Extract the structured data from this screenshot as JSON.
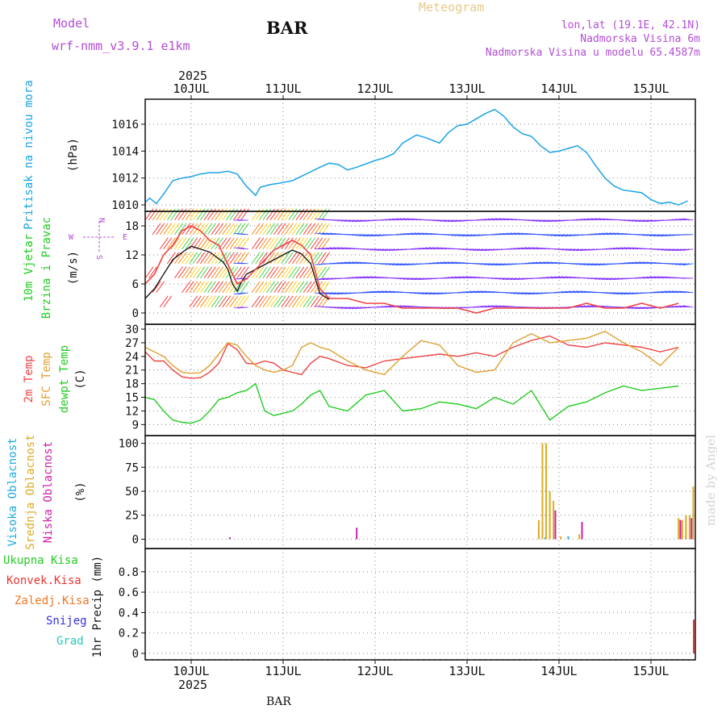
{
  "header": {
    "model_label": "Model",
    "model_name": "wrf-nmm_v3.9.1  e1km",
    "title": "BAR",
    "meteogram_label": "Meteogram",
    "coords": "lon,lat (19.1E, 42.1N)",
    "elevation": "Nadmorska Visina 6m",
    "model_elevation": "Nadmorska Visina u modelu 65.4587m",
    "footer_station": "BAR",
    "watermark": "made by Angel"
  },
  "colors": {
    "header_purple": "#b34dd6",
    "meteogram_gold": "#e8c98a",
    "pressure": "#1aa3e6",
    "wind_green": "#22cc22",
    "temp_red": "#ee4444",
    "sfc_temp": "#e0a030",
    "dewpt": "#22cc22",
    "cloud_high": "#22aadd",
    "cloud_mid": "#ddaa22",
    "cloud_low": "#cc22aa",
    "precip_total": "#22cc22",
    "precip_conv": "#ee3333",
    "precip_frozen": "#ee7722",
    "snow": "#3333dd",
    "hail": "#22ccbb",
    "wind_speed_line": "#111111"
  },
  "chart_data": {
    "type": "line",
    "x_axis": {
      "year": "2025",
      "day_labels": [
        "10JUL",
        "11JUL",
        "12JUL",
        "13JUL",
        "14JUL",
        "15JUL"
      ],
      "range_days": [
        -0.5,
        5.5
      ]
    },
    "panels": [
      {
        "name": "pressure",
        "ylabel_main": "Pritisak na nivou mora",
        "unit": "(hPa)",
        "yticks": [
          "1010",
          "1012",
          "1014",
          "1016"
        ],
        "ylim": [
          1010,
          1017.5
        ],
        "series": [
          {
            "name": "Pritisak na nivou mora",
            "x": [
              -0.5,
              -0.45,
              -0.38,
              -0.3,
              -0.2,
              -0.1,
              0.0,
              0.1,
              0.2,
              0.3,
              0.4,
              0.5,
              0.6,
              0.7,
              0.75,
              0.85,
              0.95,
              1.1,
              1.25,
              1.4,
              1.5,
              1.6,
              1.7,
              1.8,
              2.0,
              2.1,
              2.2,
              2.3,
              2.45,
              2.55,
              2.7,
              2.8,
              2.9,
              3.0,
              3.1,
              3.2,
              3.3,
              3.4,
              3.5,
              3.6,
              3.7,
              3.8,
              3.9,
              4.0,
              4.1,
              4.2,
              4.3,
              4.4,
              4.5,
              4.6,
              4.7,
              4.8,
              4.9,
              5.0,
              5.1,
              5.2,
              5.3,
              5.4,
              5.5
            ],
            "y": [
              1010.2,
              1010.5,
              1010.1,
              1010.8,
              1011.8,
              1012.0,
              1012.1,
              1012.3,
              1012.4,
              1012.4,
              1012.5,
              1012.3,
              1011.4,
              1010.7,
              1011.3,
              1011.5,
              1011.6,
              1011.8,
              1012.3,
              1012.8,
              1013.1,
              1013.0,
              1012.6,
              1012.8,
              1013.3,
              1013.5,
              1013.8,
              1014.6,
              1015.2,
              1015.0,
              1014.6,
              1015.4,
              1015.9,
              1016.0,
              1016.4,
              1016.8,
              1017.1,
              1016.6,
              1015.8,
              1015.3,
              1015.1,
              1014.4,
              1013.9,
              1014.0,
              1014.2,
              1014.4,
              1013.9,
              1012.9,
              1012.0,
              1011.4,
              1011.1,
              1011.0,
              1010.9,
              1010.4,
              1010.1,
              1010.2,
              1010.0,
              1010.3,
              1010.5
            ],
            "color": "#1aa3e6"
          }
        ]
      },
      {
        "name": "wind",
        "ylabel_main": "10m Vjetar",
        "ylabel_sub": "Brzina i Pravac",
        "unit": "(m/s)",
        "direction_key": [
          "N",
          "W",
          "E",
          "S"
        ],
        "yticks": [
          "0",
          "6",
          "12",
          "18"
        ],
        "ylim": [
          -1,
          20
        ],
        "series": [
          {
            "name": "wind speed",
            "x": [
              -0.5,
              -0.4,
              -0.3,
              -0.2,
              -0.1,
              0.0,
              0.1,
              0.2,
              0.3,
              0.35,
              0.4,
              0.45,
              0.5,
              0.55,
              0.6,
              0.7,
              0.8,
              0.9,
              1.0,
              1.1,
              1.2,
              1.3,
              1.4,
              1.5
            ],
            "y": [
              3,
              5,
              8,
              11,
              12.5,
              13.8,
              13.2,
              12.6,
              11.2,
              10.5,
              9.0,
              6.0,
              4.5,
              6.5,
              8.0,
              9.0,
              10.0,
              11.0,
              12.0,
              13.0,
              12.2,
              10.2,
              4.0,
              2.8
            ],
            "color": "#111111"
          },
          {
            "name": "gusts",
            "x": [
              -0.5,
              -0.4,
              -0.3,
              -0.2,
              -0.1,
              0.0,
              0.1,
              0.2,
              0.3,
              0.4,
              0.5,
              0.6,
              0.7,
              0.8,
              0.9,
              1.0,
              1.1,
              1.2,
              1.3,
              1.4,
              1.5,
              1.7,
              1.9,
              2.1,
              2.3,
              2.5,
              2.7,
              2.9,
              3.1,
              3.3,
              3.5,
              3.7,
              3.9,
              4.1,
              4.3,
              4.5,
              4.7,
              4.9,
              5.1,
              5.3,
              5.5
            ],
            "y": [
              6,
              8,
              12,
              14,
              17,
              18,
              17,
              15,
              14,
              10,
              6,
              7,
              9,
              11,
              13,
              14,
              15,
              14,
              12,
              5,
              3,
              3,
              2,
              2,
              1,
              1,
              1,
              1,
              0,
              1,
              1,
              1,
              1,
              1,
              2,
              1,
              1,
              2,
              1,
              2,
              2
            ],
            "color": "#ee4444"
          }
        ]
      },
      {
        "name": "temperature",
        "ylabel_lines": [
          "2m Temp",
          "SFC Temp",
          "dewpt Temp"
        ],
        "unit": "(C)",
        "yticks": [
          "9",
          "12",
          "15",
          "18",
          "21",
          "24",
          "27",
          "30"
        ],
        "ylim": [
          8,
          30
        ],
        "series": [
          {
            "name": "2m Temp",
            "x": [
              -0.5,
              -0.4,
              -0.3,
              -0.2,
              -0.1,
              0.0,
              0.1,
              0.2,
              0.3,
              0.4,
              0.5,
              0.6,
              0.7,
              0.8,
              0.9,
              1.0,
              1.1,
              1.2,
              1.3,
              1.4,
              1.5,
              1.7,
              1.9,
              2.1,
              2.3,
              2.5,
              2.7,
              2.9,
              3.1,
              3.3,
              3.5,
              3.7,
              3.9,
              4.1,
              4.3,
              4.5,
              4.7,
              4.9,
              5.1,
              5.3,
              5.5
            ],
            "y": [
              25,
              23,
              23,
              21,
              19.5,
              19.2,
              19.3,
              20.5,
              22.5,
              26.8,
              25.5,
              22.5,
              22.3,
              23.0,
              22.5,
              21.0,
              20.5,
              20.0,
              22.5,
              24.0,
              23.5,
              22.0,
              21.5,
              23.0,
              23.5,
              24.0,
              24.5,
              24.0,
              24.8,
              24.0,
              26.0,
              27.5,
              28.5,
              26.5,
              26.0,
              27.0,
              26.5,
              26.0,
              25.0,
              26.0,
              26.5
            ],
            "color": "#ee4444"
          },
          {
            "name": "SFC Temp",
            "x": [
              -0.5,
              -0.4,
              -0.3,
              -0.2,
              -0.1,
              0.0,
              0.1,
              0.2,
              0.3,
              0.4,
              0.5,
              0.6,
              0.7,
              0.8,
              0.9,
              1.0,
              1.1,
              1.2,
              1.3,
              1.4,
              1.5,
              1.7,
              1.9,
              2.1,
              2.3,
              2.5,
              2.7,
              2.9,
              3.1,
              3.3,
              3.5,
              3.7,
              3.9,
              4.1,
              4.3,
              4.5,
              4.7,
              4.9,
              5.1,
              5.3,
              5.5
            ],
            "y": [
              26,
              25,
              24,
              22,
              20.5,
              20.3,
              20.4,
              22,
              24.5,
              27.0,
              26.5,
              24.0,
              22.0,
              21.0,
              20.5,
              21.0,
              22.0,
              26.0,
              27.0,
              26.0,
              25.5,
              23.0,
              21.0,
              20.0,
              24.0,
              27.5,
              26.5,
              22.0,
              20.5,
              21.0,
              27.0,
              29.0,
              27.0,
              27.5,
              28.0,
              29.5,
              27.0,
              25.0,
              22.0,
              26.0,
              28.5
            ],
            "color": "#e0a030"
          },
          {
            "name": "dewpt Temp",
            "x": [
              -0.5,
              -0.4,
              -0.3,
              -0.2,
              -0.1,
              0.0,
              0.1,
              0.2,
              0.3,
              0.4,
              0.5,
              0.6,
              0.7,
              0.8,
              0.9,
              1.0,
              1.1,
              1.2,
              1.3,
              1.4,
              1.5,
              1.7,
              1.9,
              2.1,
              2.3,
              2.5,
              2.7,
              2.9,
              3.1,
              3.3,
              3.5,
              3.7,
              3.9,
              4.1,
              4.3,
              4.5,
              4.7,
              4.9,
              5.1,
              5.3,
              5.5
            ],
            "y": [
              15,
              14.5,
              12,
              10,
              9.5,
              9.3,
              10,
              12,
              14.5,
              15,
              16,
              16.5,
              18,
              12,
              11,
              11.5,
              12,
              13.5,
              15.5,
              16.5,
              13,
              12,
              15.5,
              16.5,
              12,
              12.5,
              14,
              13.5,
              12.5,
              15,
              13.5,
              16.5,
              10,
              13,
              14,
              16,
              17.5,
              16.5,
              17,
              17.5,
              18
            ],
            "color": "#22cc22"
          }
        ]
      },
      {
        "name": "cloud",
        "ylabel_lines": [
          "Visoka Oblacnost",
          "Srednja Oblacnost",
          "Niska Oblacnost"
        ],
        "unit": "(%)",
        "yticks": [
          "0",
          "25",
          "50",
          "75",
          "100"
        ],
        "ylim": [
          -3,
          103
        ],
        "bars": [
          {
            "name": "Visoka Oblacnost",
            "color": "#22aadd",
            "x": [
              3.85,
              4.1,
              5.38
            ],
            "values": [
              2,
              3,
              3
            ]
          },
          {
            "name": "Srednja Oblacnost",
            "color": "#ddaa22",
            "x": [
              3.78,
              3.82,
              3.86,
              3.9,
              3.94,
              4.02,
              4.22,
              5.3,
              5.34,
              5.38,
              5.42,
              5.46,
              5.5
            ],
            "values": [
              20,
              100,
              100,
              50,
              40,
              3,
              5,
              22,
              20,
              25,
              25,
              55,
              58
            ]
          },
          {
            "name": "Niska Oblacnost",
            "color": "#cc22aa",
            "x": [
              0.42,
              1.8,
              3.96,
              4.25,
              5.32,
              5.44
            ],
            "values": [
              2,
              12,
              30,
              18,
              20,
              22
            ]
          }
        ]
      },
      {
        "name": "precip",
        "ylabel_lines": [
          "Ukupna Kisa",
          "Konvek.Kisa",
          "Zaledj.Kisa",
          "Snijeg",
          "Grad"
        ],
        "unit": "1hr Precip (mm)",
        "yticks": [
          "0",
          "0.2",
          "0.4",
          "0.6",
          "0.8"
        ],
        "ylim": [
          0,
          0.98
        ],
        "bars": [
          {
            "name": "Ukupna Kisa",
            "color": "#22cc22",
            "x": [
              5.49
            ],
            "values": [
              0.33
            ]
          },
          {
            "name": "Konvek.Kisa",
            "color": "#ee3333",
            "x": [
              5.5
            ],
            "values": [
              0.33
            ]
          }
        ]
      }
    ]
  }
}
